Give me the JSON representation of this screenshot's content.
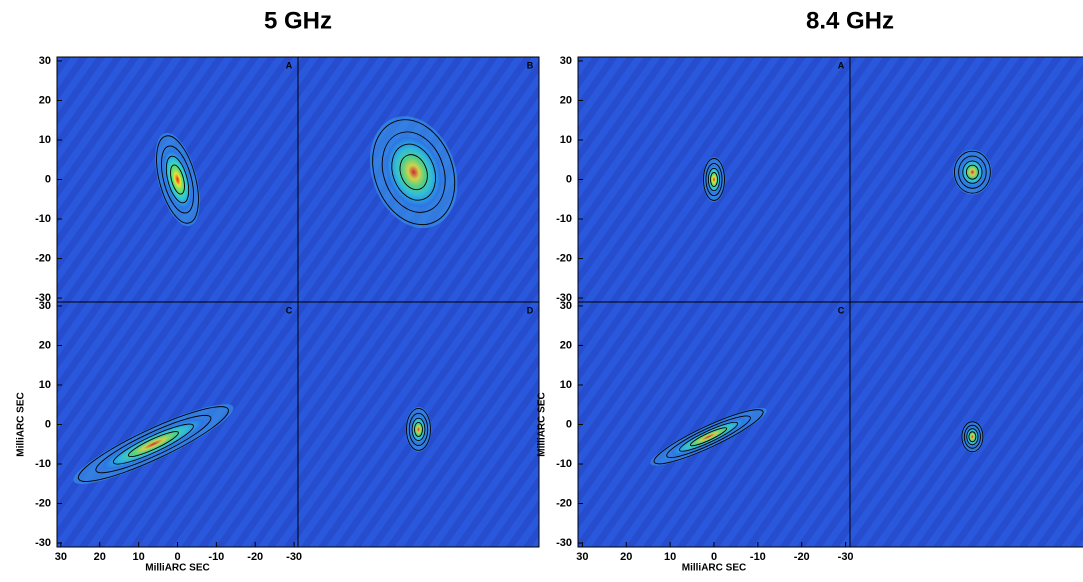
{
  "chart_data": [
    {
      "type": "image",
      "title": "5 GHz",
      "panels": [
        "A",
        "B",
        "C",
        "D"
      ],
      "xlabel": "MilliARC SEC",
      "ylabel": "MilliARC SEC",
      "xlim": [
        31,
        -31
      ],
      "ylim": [
        -31,
        31
      ],
      "xticks": [
        30,
        20,
        10,
        0,
        -10,
        -20,
        -30
      ],
      "yticks": [
        30,
        20,
        10,
        0,
        -10,
        -20,
        -30
      ]
    },
    {
      "type": "image",
      "title": "8.4 GHz",
      "panels": [
        "A",
        "B",
        "C",
        "D"
      ],
      "xlabel": "MilliARC SEC",
      "ylabel": "MilliARC SEC",
      "xlim": [
        31,
        -31
      ],
      "ylim": [
        -31,
        31
      ],
      "xticks": [
        30,
        20,
        10,
        0,
        -10,
        -20,
        -30
      ],
      "yticks": [
        30,
        20,
        10,
        0,
        -10,
        -20,
        -30
      ]
    }
  ]
}
